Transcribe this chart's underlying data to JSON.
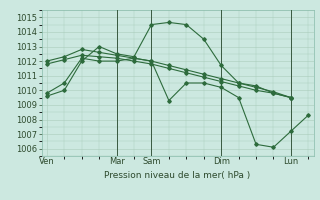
{
  "title": "Pression niveau de la mer( hPa )",
  "background_color": "#cce8e0",
  "grid_color": "#aaccbb",
  "line_color": "#2d6b3c",
  "ylim": [
    1005.5,
    1015.5
  ],
  "yticks": [
    1006,
    1007,
    1008,
    1009,
    1010,
    1011,
    1012,
    1013,
    1014,
    1015
  ],
  "xlim": [
    -0.3,
    15.3
  ],
  "xtick_positions": [
    0,
    4,
    6,
    10,
    14
  ],
  "xtick_labels": [
    "Ven",
    "Mar",
    "Sam",
    "Dim",
    "Lun"
  ],
  "vline_positions": [
    4,
    6,
    10,
    14
  ],
  "series": [
    {
      "x": [
        0,
        1,
        2,
        3,
        4,
        5,
        6,
        7,
        8,
        9,
        10,
        11,
        12,
        13,
        14
      ],
      "y": [
        1009.6,
        1010.0,
        1012.0,
        1013.0,
        1012.5,
        1012.3,
        1014.5,
        1014.65,
        1014.5,
        1013.5,
        1011.7,
        1010.5,
        1010.3,
        1009.8,
        1009.5
      ]
    },
    {
      "x": [
        0,
        1,
        2,
        3,
        4,
        5,
        6,
        7,
        8,
        9,
        10,
        11,
        12,
        13,
        14
      ],
      "y": [
        1012.0,
        1012.3,
        1012.8,
        1012.6,
        1012.4,
        1012.2,
        1012.0,
        1011.7,
        1011.4,
        1011.1,
        1010.8,
        1010.5,
        1010.2,
        1009.9,
        1009.5
      ]
    },
    {
      "x": [
        0,
        1,
        2,
        3,
        4,
        5,
        6,
        7,
        8,
        9,
        10,
        11,
        12,
        13,
        14
      ],
      "y": [
        1011.8,
        1012.1,
        1012.4,
        1012.3,
        1012.2,
        1012.0,
        1011.8,
        1011.5,
        1011.2,
        1010.9,
        1010.6,
        1010.3,
        1010.0,
        1009.8,
        1009.5
      ]
    },
    {
      "x": [
        0,
        1,
        2,
        3,
        4,
        5,
        6,
        7,
        8,
        9,
        10,
        11,
        12,
        13,
        14,
        15
      ],
      "y": [
        1009.8,
        1010.5,
        1012.2,
        1012.0,
        1012.0,
        1012.2,
        1012.0,
        1009.3,
        1010.5,
        1010.5,
        1010.2,
        1009.5,
        1006.3,
        1006.1,
        1007.2,
        1008.3
      ]
    }
  ],
  "title_fontsize": 6.5,
  "tick_fontsize": 6,
  "tick_color": "#2d4a2d"
}
